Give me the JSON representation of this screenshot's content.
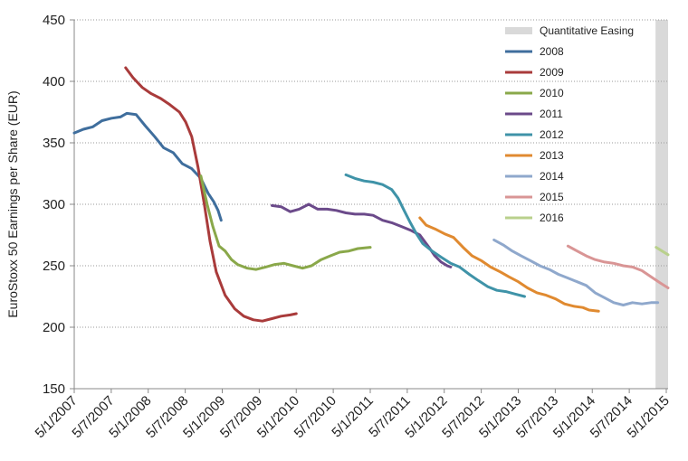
{
  "chart_data": {
    "type": "line",
    "ylabel": "EuroStoxx 50 Earnings per Share (EUR)",
    "xlabel": "",
    "ylim": [
      150,
      450
    ],
    "yticks": [
      150,
      200,
      250,
      300,
      350,
      400,
      450
    ],
    "xlim": [
      "2007-05-01",
      "2015-05-10"
    ],
    "xticks": [
      "5/1/2007",
      "5/7/2007",
      "5/1/2008",
      "5/7/2008",
      "5/1/2009",
      "5/7/2009",
      "5/1/2010",
      "5/7/2010",
      "5/1/2011",
      "5/7/2011",
      "5/1/2012",
      "5/7/2012",
      "5/1/2013",
      "5/7/2013",
      "5/1/2014",
      "5/7/2014",
      "5/1/2015"
    ],
    "grid": true,
    "legend_position": "top-right",
    "shaded_region": {
      "name": "Quantitative Easing",
      "start": "2015-03-09",
      "end": "2015-05-10",
      "color": "#d9d9d9"
    },
    "series": [
      {
        "name": "2008",
        "color": "#3f6e9d",
        "points": [
          [
            "2007-05-01",
            358
          ],
          [
            "2007-06-15",
            361
          ],
          [
            "2007-08-01",
            363
          ],
          [
            "2007-09-15",
            368
          ],
          [
            "2007-11-01",
            370
          ],
          [
            "2007-12-15",
            371
          ],
          [
            "2008-01-15",
            374
          ],
          [
            "2008-03-01",
            373
          ],
          [
            "2008-04-15",
            364
          ],
          [
            "2008-06-01",
            355
          ],
          [
            "2008-07-15",
            346
          ],
          [
            "2008-09-01",
            342
          ],
          [
            "2008-10-15",
            333
          ],
          [
            "2008-12-01",
            329
          ],
          [
            "2009-01-15",
            321
          ],
          [
            "2009-02-20",
            309
          ],
          [
            "2009-03-20",
            302
          ],
          [
            "2009-04-10",
            295
          ],
          [
            "2009-04-25",
            287
          ]
        ]
      },
      {
        "name": "2009",
        "color": "#a93b3b",
        "points": [
          [
            "2008-01-10",
            411
          ],
          [
            "2008-02-15",
            403
          ],
          [
            "2008-04-01",
            395
          ],
          [
            "2008-05-15",
            390
          ],
          [
            "2008-07-01",
            386
          ],
          [
            "2008-08-15",
            381
          ],
          [
            "2008-10-01",
            375
          ],
          [
            "2008-11-01",
            367
          ],
          [
            "2008-12-01",
            355
          ],
          [
            "2009-01-01",
            330
          ],
          [
            "2009-02-01",
            300
          ],
          [
            "2009-03-01",
            270
          ],
          [
            "2009-04-01",
            245
          ],
          [
            "2009-05-15",
            226
          ],
          [
            "2009-07-01",
            215
          ],
          [
            "2009-08-15",
            209
          ],
          [
            "2009-10-01",
            206
          ],
          [
            "2009-11-15",
            205
          ],
          [
            "2010-01-01",
            207
          ],
          [
            "2010-02-15",
            209
          ],
          [
            "2010-04-01",
            210
          ],
          [
            "2010-05-01",
            211
          ]
        ]
      },
      {
        "name": "2010",
        "color": "#8aa84a",
        "points": [
          [
            "2009-01-15",
            323
          ],
          [
            "2009-02-15",
            300
          ],
          [
            "2009-03-15",
            282
          ],
          [
            "2009-04-15",
            266
          ],
          [
            "2009-05-15",
            262
          ],
          [
            "2009-06-15",
            255
          ],
          [
            "2009-07-15",
            251
          ],
          [
            "2009-09-01",
            248
          ],
          [
            "2009-10-15",
            247
          ],
          [
            "2009-12-01",
            249
          ],
          [
            "2010-01-15",
            251
          ],
          [
            "2010-03-01",
            252
          ],
          [
            "2010-04-15",
            250
          ],
          [
            "2010-06-01",
            248
          ],
          [
            "2010-07-15",
            250
          ],
          [
            "2010-09-01",
            255
          ],
          [
            "2010-10-15",
            258
          ],
          [
            "2010-12-01",
            261
          ],
          [
            "2011-01-15",
            262
          ],
          [
            "2011-03-01",
            264
          ],
          [
            "2011-05-01",
            265
          ]
        ]
      },
      {
        "name": "2011",
        "color": "#6b4a8a",
        "points": [
          [
            "2010-01-01",
            299
          ],
          [
            "2010-02-15",
            298
          ],
          [
            "2010-04-01",
            294
          ],
          [
            "2010-05-15",
            296
          ],
          [
            "2010-07-01",
            300
          ],
          [
            "2010-08-15",
            296
          ],
          [
            "2010-10-01",
            296
          ],
          [
            "2010-11-15",
            295
          ],
          [
            "2011-01-01",
            293
          ],
          [
            "2011-02-15",
            292
          ],
          [
            "2011-04-01",
            292
          ],
          [
            "2011-05-15",
            291
          ],
          [
            "2011-07-01",
            287
          ],
          [
            "2011-08-15",
            285
          ],
          [
            "2011-10-01",
            282
          ],
          [
            "2011-11-15",
            279
          ],
          [
            "2012-01-01",
            275
          ],
          [
            "2012-02-15",
            265
          ],
          [
            "2012-03-15",
            258
          ],
          [
            "2012-04-15",
            253
          ],
          [
            "2012-05-15",
            250
          ],
          [
            "2012-06-01",
            249
          ]
        ]
      },
      {
        "name": "2012",
        "color": "#3f93a8",
        "points": [
          [
            "2011-01-01",
            324
          ],
          [
            "2011-02-15",
            321
          ],
          [
            "2011-04-01",
            319
          ],
          [
            "2011-05-15",
            318
          ],
          [
            "2011-07-01",
            316
          ],
          [
            "2011-08-15",
            312
          ],
          [
            "2011-09-15",
            305
          ],
          [
            "2011-10-15",
            295
          ],
          [
            "2011-11-15",
            285
          ],
          [
            "2011-12-15",
            276
          ],
          [
            "2012-01-15",
            268
          ],
          [
            "2012-03-01",
            262
          ],
          [
            "2012-04-15",
            257
          ],
          [
            "2012-06-01",
            252
          ],
          [
            "2012-07-15",
            249
          ],
          [
            "2012-09-01",
            243
          ],
          [
            "2012-10-15",
            238
          ],
          [
            "2012-12-01",
            233
          ],
          [
            "2013-01-15",
            230
          ],
          [
            "2013-03-01",
            229
          ],
          [
            "2013-04-15",
            227
          ],
          [
            "2013-06-01",
            225
          ]
        ]
      },
      {
        "name": "2013",
        "color": "#e08a30",
        "points": [
          [
            "2012-01-01",
            289
          ],
          [
            "2012-02-01",
            283
          ],
          [
            "2012-03-15",
            280
          ],
          [
            "2012-05-01",
            276
          ],
          [
            "2012-06-15",
            273
          ],
          [
            "2012-08-01",
            265
          ],
          [
            "2012-09-15",
            258
          ],
          [
            "2012-11-01",
            254
          ],
          [
            "2012-12-15",
            249
          ],
          [
            "2013-02-01",
            245
          ],
          [
            "2013-03-15",
            241
          ],
          [
            "2013-05-01",
            237
          ],
          [
            "2013-06-15",
            232
          ],
          [
            "2013-08-01",
            228
          ],
          [
            "2013-09-15",
            226
          ],
          [
            "2013-11-01",
            223
          ],
          [
            "2013-12-15",
            219
          ],
          [
            "2014-02-01",
            217
          ],
          [
            "2014-03-15",
            216
          ],
          [
            "2014-04-15",
            214
          ],
          [
            "2014-06-01",
            213
          ]
        ]
      },
      {
        "name": "2014",
        "color": "#8fa8cc",
        "points": [
          [
            "2013-01-01",
            271
          ],
          [
            "2013-02-15",
            267
          ],
          [
            "2013-04-01",
            262
          ],
          [
            "2013-05-15",
            258
          ],
          [
            "2013-07-01",
            254
          ],
          [
            "2013-08-15",
            250
          ],
          [
            "2013-10-01",
            247
          ],
          [
            "2013-11-15",
            243
          ],
          [
            "2014-01-01",
            240
          ],
          [
            "2014-02-15",
            237
          ],
          [
            "2014-04-01",
            234
          ],
          [
            "2014-05-15",
            228
          ],
          [
            "2014-07-01",
            224
          ],
          [
            "2014-08-15",
            220
          ],
          [
            "2014-10-01",
            218
          ],
          [
            "2014-11-15",
            220
          ],
          [
            "2015-01-01",
            219
          ],
          [
            "2015-02-15",
            220
          ],
          [
            "2015-03-20",
            220
          ]
        ]
      },
      {
        "name": "2015",
        "color": "#d99595",
        "points": [
          [
            "2014-01-01",
            266
          ],
          [
            "2014-02-15",
            262
          ],
          [
            "2014-04-01",
            258
          ],
          [
            "2014-05-15",
            255
          ],
          [
            "2014-07-01",
            253
          ],
          [
            "2014-08-15",
            252
          ],
          [
            "2014-10-01",
            250
          ],
          [
            "2014-11-15",
            249
          ],
          [
            "2015-01-01",
            246
          ],
          [
            "2015-02-15",
            241
          ],
          [
            "2015-04-01",
            236
          ],
          [
            "2015-05-10",
            232
          ]
        ]
      },
      {
        "name": "2016",
        "color": "#b9d08c",
        "points": [
          [
            "2015-03-12",
            265
          ],
          [
            "2015-04-10",
            262
          ],
          [
            "2015-05-10",
            259
          ]
        ]
      }
    ]
  }
}
